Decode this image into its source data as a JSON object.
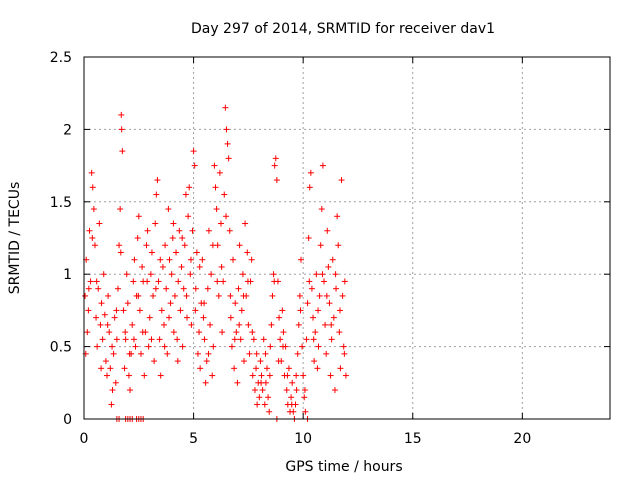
{
  "chart_data": {
    "type": "scatter",
    "title": "Day 297 of 2014, SRMTID for receiver dav1",
    "xlabel": "GPS time / hours",
    "ylabel": "SRMTID / TECUs",
    "xlim": [
      0,
      24
    ],
    "ylim": [
      0,
      2.5
    ],
    "grid": true,
    "marker": "+",
    "color": "#ff0000",
    "xticks": [
      0,
      5,
      10,
      15,
      20
    ],
    "xtick_labels": [
      "0",
      "5",
      "10",
      "15",
      "20"
    ],
    "yticks": [
      0,
      0.5,
      1,
      1.5,
      2,
      2.5
    ],
    "ytick_labels": [
      "0",
      "0.5",
      "1",
      "1.5",
      "2",
      "2.5"
    ],
    "series": [
      {
        "name": "SRMTID",
        "points": [
          [
            0.05,
            0.85
          ],
          [
            0.1,
            1.1
          ],
          [
            0.15,
            0.6
          ],
          [
            0.2,
            0.75
          ],
          [
            0.25,
            1.3
          ],
          [
            0.3,
            0.95
          ],
          [
            0.35,
            1.7
          ],
          [
            0.4,
            1.6
          ],
          [
            0.45,
            1.45
          ],
          [
            0.5,
            1.2
          ],
          [
            0.55,
            0.7
          ],
          [
            0.6,
            0.5
          ],
          [
            0.65,
            0.9
          ],
          [
            0.7,
            1.35
          ],
          [
            0.75,
            0.65
          ],
          [
            0.8,
            0.8
          ],
          [
            0.85,
            0.55
          ],
          [
            0.9,
            1.0
          ],
          [
            0.95,
            0.72
          ],
          [
            1.0,
            0.4
          ],
          [
            1.05,
            0.3
          ],
          [
            1.1,
            0.85
          ],
          [
            1.15,
            0.6
          ],
          [
            1.2,
            0.35
          ],
          [
            1.25,
            0.1
          ],
          [
            1.3,
            0.2
          ],
          [
            1.35,
            0.45
          ],
          [
            1.4,
            0.7
          ],
          [
            1.45,
            0.25
          ],
          [
            1.5,
            0.55
          ],
          [
            1.55,
            0.9
          ],
          [
            1.6,
            1.2
          ],
          [
            1.65,
            1.45
          ],
          [
            1.7,
            2.1
          ],
          [
            1.72,
            2.0
          ],
          [
            1.75,
            1.85
          ],
          [
            1.8,
            0.75
          ],
          [
            1.85,
            0.35
          ],
          [
            1.9,
            0.55
          ],
          [
            1.95,
            1.0
          ],
          [
            2.0,
            0.8
          ],
          [
            2.05,
            0.3
          ],
          [
            2.1,
            0.2
          ],
          [
            2.15,
            0.45
          ],
          [
            2.2,
            0.65
          ],
          [
            2.25,
            0.95
          ],
          [
            2.3,
            1.1
          ],
          [
            2.35,
            0.5
          ],
          [
            2.4,
            0.85
          ],
          [
            2.45,
            1.25
          ],
          [
            2.5,
            1.4
          ],
          [
            2.55,
            0.75
          ],
          [
            2.6,
            0.45
          ],
          [
            2.65,
            1.05
          ],
          [
            2.7,
            0.95
          ],
          [
            2.75,
            0.3
          ],
          [
            2.8,
            0.6
          ],
          [
            2.85,
            1.2
          ],
          [
            2.9,
            1.3
          ],
          [
            2.95,
            0.5
          ],
          [
            3.0,
            0.7
          ],
          [
            3.05,
            1.0
          ],
          [
            3.1,
            1.15
          ],
          [
            3.15,
            0.85
          ],
          [
            3.2,
            0.4
          ],
          [
            3.25,
            1.35
          ],
          [
            3.3,
            1.55
          ],
          [
            3.35,
            1.65
          ],
          [
            3.4,
            0.95
          ],
          [
            3.45,
            0.55
          ],
          [
            3.5,
            0.3
          ],
          [
            3.55,
            0.75
          ],
          [
            3.6,
            1.05
          ],
          [
            3.65,
            0.65
          ],
          [
            3.7,
            1.2
          ],
          [
            3.75,
            0.9
          ],
          [
            3.8,
            0.45
          ],
          [
            3.85,
            1.45
          ],
          [
            3.9,
            1.1
          ],
          [
            3.95,
            0.8
          ],
          [
            4.0,
            1.0
          ],
          [
            4.05,
            1.25
          ],
          [
            4.1,
            0.6
          ],
          [
            4.15,
            0.85
          ],
          [
            4.2,
            1.15
          ],
          [
            4.25,
            0.55
          ],
          [
            4.3,
            0.95
          ],
          [
            4.35,
            1.3
          ],
          [
            4.4,
            0.75
          ],
          [
            4.45,
            1.05
          ],
          [
            4.5,
            0.5
          ],
          [
            4.55,
            0.9
          ],
          [
            4.6,
            1.2
          ],
          [
            4.65,
            1.55
          ],
          [
            4.7,
            0.7
          ],
          [
            4.75,
            1.4
          ],
          [
            4.8,
            1.6
          ],
          [
            4.85,
            1.0
          ],
          [
            4.9,
            0.65
          ],
          [
            4.95,
            1.3
          ],
          [
            5.0,
            1.85
          ],
          [
            5.05,
            1.75
          ],
          [
            5.1,
            0.9
          ],
          [
            5.15,
            1.15
          ],
          [
            5.2,
            0.45
          ],
          [
            5.25,
            0.6
          ],
          [
            5.3,
            0.35
          ],
          [
            5.35,
            0.8
          ],
          [
            5.4,
            1.1
          ],
          [
            5.45,
            0.7
          ],
          [
            5.5,
            0.55
          ],
          [
            5.55,
            0.25
          ],
          [
            5.6,
            0.4
          ],
          [
            5.65,
            0.9
          ],
          [
            5.7,
            1.3
          ],
          [
            5.75,
            0.65
          ],
          [
            5.8,
            1.0
          ],
          [
            5.85,
            0.3
          ],
          [
            5.9,
            0.5
          ],
          [
            5.95,
            1.75
          ],
          [
            6.0,
            1.6
          ],
          [
            6.05,
            1.45
          ],
          [
            6.1,
            1.2
          ],
          [
            6.15,
            0.85
          ],
          [
            6.2,
            1.7
          ],
          [
            6.25,
            1.35
          ],
          [
            6.3,
            0.6
          ],
          [
            6.35,
            0.95
          ],
          [
            6.4,
            1.55
          ],
          [
            6.45,
            2.15
          ],
          [
            6.5,
            2.0
          ],
          [
            6.55,
            1.9
          ],
          [
            6.6,
            1.8
          ],
          [
            6.65,
            1.3
          ],
          [
            6.7,
            0.7
          ],
          [
            6.75,
            0.5
          ],
          [
            6.8,
            1.1
          ],
          [
            6.85,
            0.35
          ],
          [
            6.9,
            0.8
          ],
          [
            6.95,
            0.6
          ],
          [
            7.0,
            0.25
          ],
          [
            7.05,
            0.9
          ],
          [
            7.1,
            1.2
          ],
          [
            7.15,
            0.55
          ],
          [
            7.2,
            0.75
          ],
          [
            7.25,
            1.0
          ],
          [
            7.3,
            0.4
          ],
          [
            7.35,
            1.35
          ],
          [
            7.4,
            0.85
          ],
          [
            7.45,
            1.15
          ],
          [
            7.5,
            0.65
          ],
          [
            7.55,
            0.45
          ],
          [
            7.6,
            0.95
          ],
          [
            7.65,
            1.1
          ],
          [
            7.7,
            0.3
          ],
          [
            7.75,
            0.55
          ],
          [
            7.8,
            0.2
          ],
          [
            7.85,
            0.35
          ],
          [
            7.9,
            0.1
          ],
          [
            7.95,
            0.25
          ],
          [
            8.0,
            0.15
          ],
          [
            8.05,
            0.4
          ],
          [
            8.1,
            0.3
          ],
          [
            8.15,
            0.2
          ],
          [
            8.2,
            0.55
          ],
          [
            8.25,
            0.1
          ],
          [
            8.3,
            0.25
          ],
          [
            8.35,
            0.35
          ],
          [
            8.4,
            0.15
          ],
          [
            8.45,
            0.05
          ],
          [
            8.5,
            0.5
          ],
          [
            8.55,
            0.65
          ],
          [
            8.6,
            0.85
          ],
          [
            8.65,
            1.0
          ],
          [
            8.7,
            1.75
          ],
          [
            8.75,
            1.8
          ],
          [
            8.8,
            1.65
          ],
          [
            8.85,
            0.95
          ],
          [
            8.9,
            0.7
          ],
          [
            8.95,
            0.55
          ],
          [
            9.0,
            0.4
          ],
          [
            9.05,
            0.75
          ],
          [
            9.1,
            0.6
          ],
          [
            9.15,
            0.3
          ],
          [
            9.2,
            0.5
          ],
          [
            9.25,
            0.2
          ],
          [
            9.3,
            0.1
          ],
          [
            9.35,
            0.35
          ],
          [
            9.4,
            0.05
          ],
          [
            9.45,
            0.15
          ],
          [
            9.5,
            0.25
          ],
          [
            9.55,
            0.05
          ],
          [
            9.6,
            0.0
          ],
          [
            9.65,
            0.1
          ],
          [
            9.7,
            0.2
          ],
          [
            9.75,
            0.45
          ],
          [
            9.8,
            0.65
          ],
          [
            9.85,
            0.85
          ],
          [
            9.9,
            1.1
          ],
          [
            9.95,
            0.5
          ],
          [
            10.0,
            0.3
          ],
          [
            10.05,
            0.15
          ],
          [
            10.1,
            0.05
          ],
          [
            10.15,
            0.55
          ],
          [
            10.2,
            0.8
          ],
          [
            10.25,
            1.25
          ],
          [
            10.3,
            1.6
          ],
          [
            10.35,
            1.7
          ],
          [
            10.4,
            0.9
          ],
          [
            10.45,
            0.7
          ],
          [
            10.5,
            0.4
          ],
          [
            10.55,
            0.6
          ],
          [
            10.6,
            1.0
          ],
          [
            10.65,
            0.35
          ],
          [
            10.7,
            0.5
          ],
          [
            10.75,
            0.85
          ],
          [
            10.8,
            1.2
          ],
          [
            10.85,
            1.45
          ],
          [
            10.9,
            1.75
          ],
          [
            10.95,
            0.95
          ],
          [
            11.0,
            0.65
          ],
          [
            11.05,
            0.45
          ],
          [
            11.1,
            1.3
          ],
          [
            11.15,
            1.05
          ],
          [
            11.2,
            0.8
          ],
          [
            11.25,
            0.3
          ],
          [
            11.3,
            0.55
          ],
          [
            11.35,
            1.1
          ],
          [
            11.4,
            0.7
          ],
          [
            11.45,
            0.2
          ],
          [
            11.5,
            0.9
          ],
          [
            11.55,
            1.4
          ],
          [
            11.6,
            1.2
          ],
          [
            11.65,
            0.6
          ],
          [
            11.7,
            0.35
          ],
          [
            11.75,
            1.65
          ],
          [
            11.8,
            0.85
          ],
          [
            11.85,
            0.5
          ],
          [
            11.9,
            0.95
          ],
          [
            11.95,
            0.3
          ],
          [
            0.08,
            0.45
          ],
          [
            0.22,
            0.9
          ],
          [
            0.38,
            1.25
          ],
          [
            0.58,
            0.95
          ],
          [
            0.78,
            0.35
          ],
          [
            1.08,
            0.65
          ],
          [
            1.28,
            0.5
          ],
          [
            1.48,
            0.75
          ],
          [
            1.68,
            1.15
          ],
          [
            1.88,
            0.6
          ],
          [
            2.08,
            0.45
          ],
          [
            2.28,
            0.55
          ],
          [
            2.48,
            0.85
          ],
          [
            2.68,
            0.6
          ],
          [
            2.88,
            0.95
          ],
          [
            3.08,
            0.55
          ],
          [
            3.28,
            0.9
          ],
          [
            3.48,
            1.1
          ],
          [
            3.68,
            0.5
          ],
          [
            3.88,
            0.7
          ],
          [
            4.08,
            1.35
          ],
          [
            4.28,
            0.4
          ],
          [
            4.48,
            1.25
          ],
          [
            4.68,
            0.85
          ],
          [
            4.88,
            1.1
          ],
          [
            5.08,
            0.75
          ],
          [
            5.28,
            1.05
          ],
          [
            5.48,
            0.8
          ],
          [
            5.68,
            0.45
          ],
          [
            5.88,
            1.2
          ],
          [
            6.08,
            0.95
          ],
          [
            6.28,
            1.05
          ],
          [
            6.48,
            1.4
          ],
          [
            6.68,
            0.85
          ],
          [
            6.88,
            0.55
          ],
          [
            7.08,
            0.65
          ],
          [
            7.28,
            0.85
          ],
          [
            7.48,
            0.95
          ],
          [
            7.68,
            0.6
          ],
          [
            7.88,
            0.45
          ],
          [
            8.08,
            0.25
          ],
          [
            8.28,
            0.45
          ],
          [
            8.48,
            0.3
          ],
          [
            8.68,
            0.95
          ],
          [
            8.88,
            0.4
          ],
          [
            9.08,
            0.5
          ],
          [
            9.28,
            0.3
          ],
          [
            9.48,
            0.1
          ],
          [
            9.68,
            0.3
          ],
          [
            9.88,
            0.75
          ],
          [
            10.08,
            0.2
          ],
          [
            10.28,
            0.95
          ],
          [
            10.48,
            0.55
          ],
          [
            10.68,
            0.75
          ],
          [
            10.88,
            1.0
          ],
          [
            11.08,
            0.85
          ],
          [
            11.28,
            0.65
          ],
          [
            11.48,
            1.0
          ],
          [
            11.68,
            0.75
          ],
          [
            11.88,
            0.45
          ],
          [
            1.5,
            0.0
          ],
          [
            1.6,
            0.0
          ],
          [
            1.9,
            0.0
          ],
          [
            2.0,
            0.0
          ],
          [
            2.1,
            0.0
          ],
          [
            2.2,
            0.0
          ],
          [
            2.4,
            0.0
          ],
          [
            2.5,
            0.0
          ],
          [
            2.6,
            0.0
          ],
          [
            2.7,
            0.0
          ],
          [
            8.8,
            0.0
          ],
          [
            10.2,
            0.0
          ]
        ]
      }
    ]
  }
}
